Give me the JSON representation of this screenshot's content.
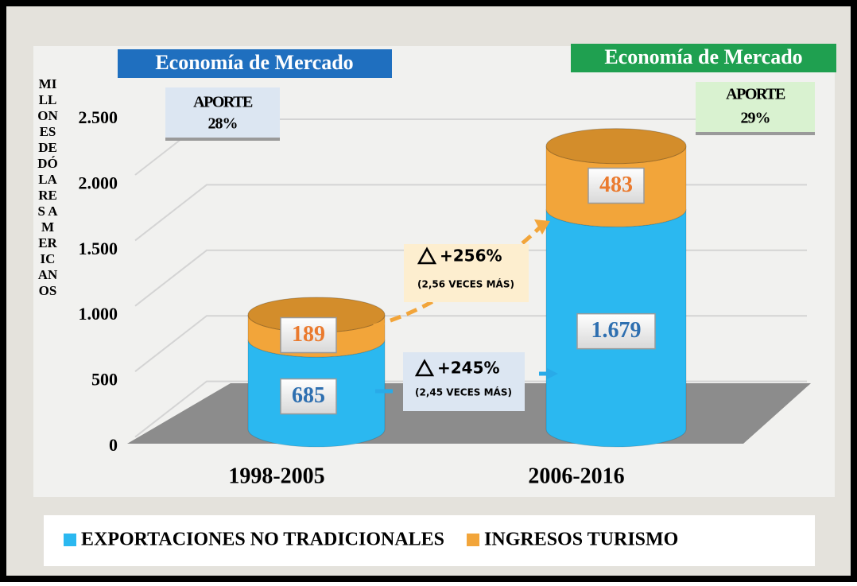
{
  "chart_data": {
    "type": "bar",
    "stacked": true,
    "categories": [
      "1998-2005",
      "2006-2016"
    ],
    "series": [
      {
        "name": "EXPORTACIONES NO TRADICIONALES",
        "color": "#2bb8f0",
        "label_color": "#2e6fb0",
        "values": [
          685,
          1679
        ],
        "value_labels": [
          "685",
          "1.679"
        ]
      },
      {
        "name": "INGRESOS TURISMO",
        "color": "#f2a53a",
        "label_color": "#ea7a2e",
        "values": [
          189,
          483
        ]
      }
    ],
    "ylim": [
      0,
      2500
    ],
    "yticks": [
      0,
      500,
      {
        "value": 1000,
        "label": "1.000"
      },
      {
        "value": 1500,
        "label": "1.500"
      },
      {
        "value": 2000,
        "label": "2.000"
      },
      {
        "value": 2500,
        "label": "2.500"
      }
    ],
    "y_label": "MILLONES DE DÓLARES AMERICANOS",
    "grid": true,
    "legend": "bottom",
    "panels": [
      {
        "header": "Economía de Mercado",
        "share_label": "APORTE",
        "share": "28%"
      },
      {
        "header": "Economía de Mercado",
        "share_label": "APORTE",
        "share": "29%"
      }
    ],
    "growth": [
      {
        "text": "+256%",
        "note": "(2,56 VECES MÁS)"
      },
      {
        "text": "+245%",
        "note": "(2,45 VECES MÁS)"
      }
    ]
  }
}
